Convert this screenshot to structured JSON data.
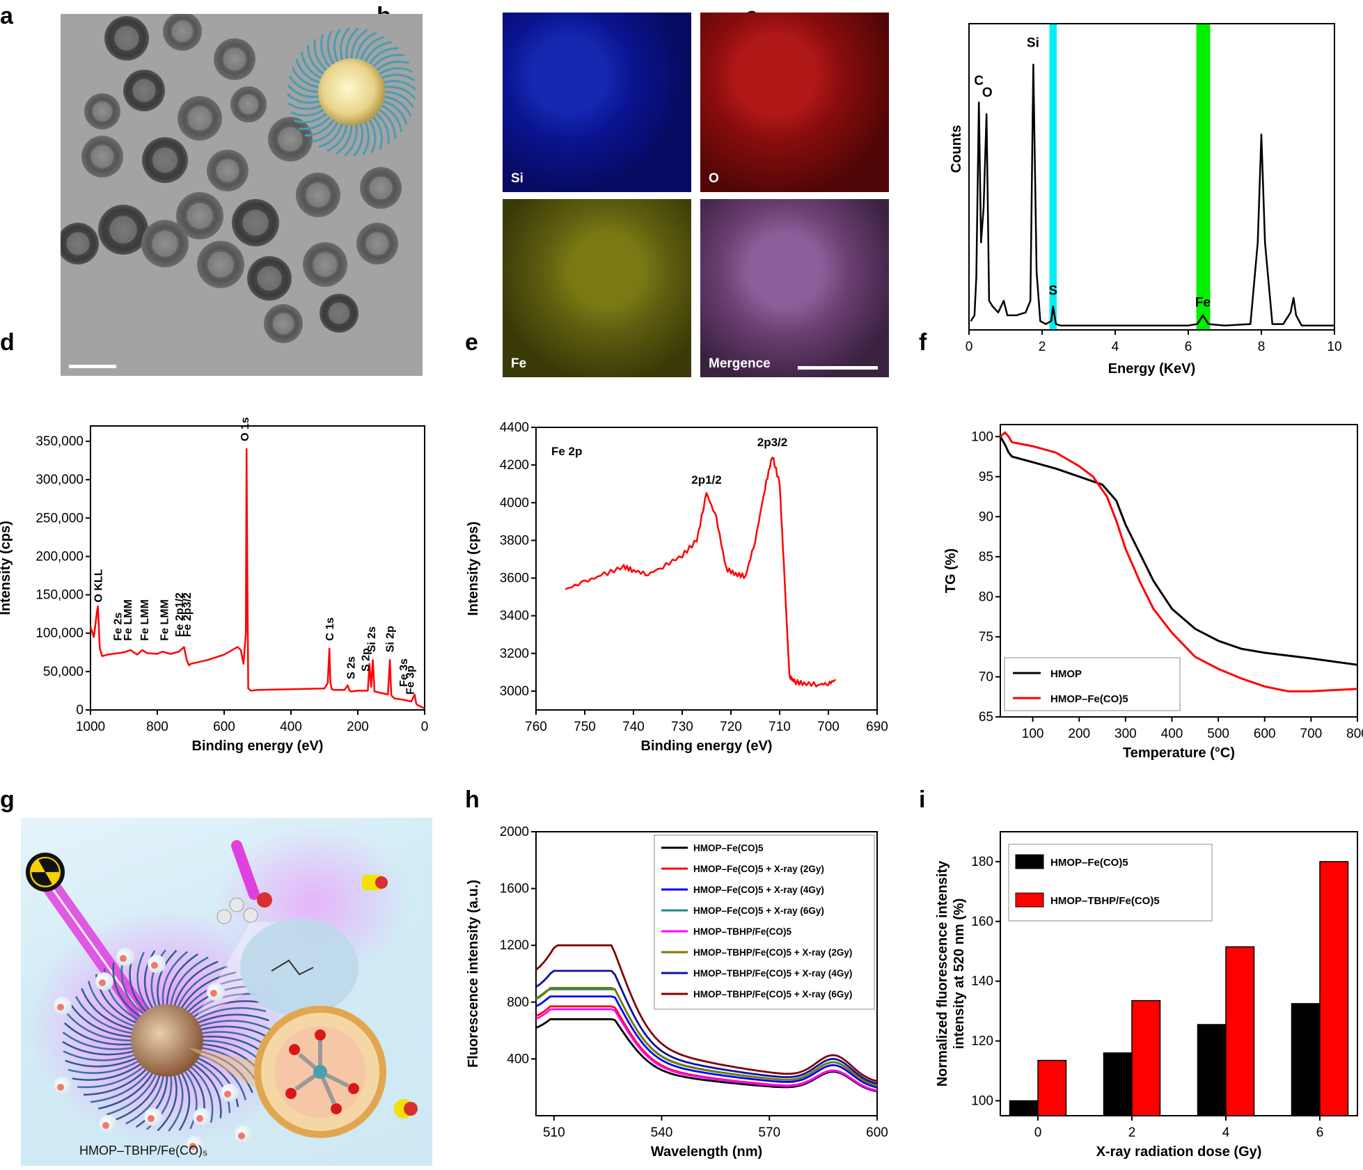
{
  "panels": {
    "a": "a",
    "b": "b",
    "c": "c",
    "d": "d",
    "e": "e",
    "f": "f",
    "g": "g",
    "h": "h",
    "i": "i"
  },
  "b_maps": {
    "si": "Si",
    "o": "O",
    "fe": "Fe",
    "merge": "Mergence",
    "colors": {
      "si": "#0a1aa0",
      "o": "#a01010",
      "fe": "#8a8a20",
      "merge": "#8a5a8a"
    }
  },
  "g_label": "HMOP–TBHP/Fe(CO)₅",
  "chart_data": [
    {
      "id": "c",
      "type": "line",
      "xlabel": "Energy (KeV)",
      "ylabel": "Counts",
      "xlim": [
        0,
        10
      ],
      "x_ticks": [
        "0",
        "2",
        "4",
        "6",
        "8",
        "10"
      ],
      "x": [
        0.05,
        0.15,
        0.2,
        0.27,
        0.33,
        0.4,
        0.48,
        0.55,
        0.65,
        0.8,
        0.95,
        1.05,
        1.3,
        1.55,
        1.68,
        1.76,
        1.85,
        1.95,
        2.1,
        2.25,
        2.3,
        2.38,
        2.5,
        3.0,
        4.0,
        5.0,
        6.0,
        6.25,
        6.4,
        6.55,
        7.0,
        7.7,
        7.9,
        8.0,
        8.1,
        8.3,
        8.6,
        8.8,
        8.88,
        8.95,
        9.1,
        10.0
      ],
      "y": [
        0.03,
        0.05,
        0.18,
        0.78,
        0.3,
        0.42,
        0.74,
        0.1,
        0.08,
        0.06,
        0.1,
        0.05,
        0.05,
        0.06,
        0.1,
        0.91,
        0.2,
        0.03,
        0.02,
        0.03,
        0.08,
        0.02,
        0.015,
        0.015,
        0.015,
        0.015,
        0.015,
        0.02,
        0.05,
        0.02,
        0.015,
        0.02,
        0.3,
        0.67,
        0.3,
        0.02,
        0.02,
        0.06,
        0.11,
        0.05,
        0.015,
        0.015
      ],
      "peaks": [
        {
          "label": "C",
          "x": 0.27
        },
        {
          "label": "O",
          "x": 0.5
        },
        {
          "label": "Si",
          "x": 1.75
        },
        {
          "label": "S",
          "x": 2.3
        },
        {
          "label": "Fe",
          "x": 6.4
        }
      ],
      "bands": [
        {
          "x0": 2.2,
          "x1": 2.4,
          "color": "#00f0f5"
        },
        {
          "x0": 6.22,
          "x1": 6.6,
          "color": "#00f000"
        }
      ]
    },
    {
      "id": "d",
      "type": "line",
      "xlabel": "Binding energy (eV)",
      "ylabel": "Intensity (cps)",
      "xlim": [
        1000,
        0
      ],
      "ylim": [
        0,
        370000
      ],
      "x_ticks": [
        "1000",
        "800",
        "600",
        "400",
        "200",
        "0"
      ],
      "y_ticks": [
        "0",
        "50,000",
        "100,000",
        "150,000",
        "200,000",
        "250,000",
        "300,000",
        "350,000"
      ],
      "x": [
        1000,
        990,
        980,
        978,
        972,
        965,
        950,
        900,
        880,
        860,
        845,
        830,
        800,
        785,
        760,
        735,
        720,
        712,
        705,
        700,
        650,
        600,
        560,
        550,
        542,
        535,
        533,
        531,
        528,
        520,
        500,
        400,
        300,
        290,
        285,
        282,
        278,
        270,
        240,
        230,
        225,
        220,
        200,
        170,
        165,
        160,
        155,
        150,
        110,
        104,
        100,
        98,
        90,
        60,
        40,
        30,
        25,
        20,
        10,
        0
      ],
      "y": [
        108000,
        95000,
        130000,
        135000,
        80000,
        70000,
        72000,
        75000,
        78000,
        72000,
        78000,
        74000,
        73000,
        76000,
        73000,
        76000,
        82000,
        65000,
        58000,
        60000,
        65000,
        72000,
        82000,
        78000,
        60000,
        100000,
        340000,
        200000,
        28000,
        25000,
        26000,
        27000,
        28000,
        35000,
        80000,
        35000,
        27000,
        26000,
        26000,
        32000,
        25000,
        24000,
        25000,
        25000,
        60000,
        30000,
        65000,
        24000,
        20000,
        65000,
        20000,
        18000,
        15000,
        13000,
        11000,
        20000,
        8000,
        6000,
        4000,
        2000
      ],
      "annotations": [
        "O KLL",
        "Fe 2s",
        "Fe LMM",
        "Fe LMM",
        "Fe LMM",
        "Fe 2p1/2",
        "Fe 2p3/2",
        "O 1s",
        "C 1s",
        "S 2s",
        "S 2p",
        "Si 2s",
        "Si 2p",
        "Fe 3s",
        "Fe 3p"
      ]
    },
    {
      "id": "e",
      "type": "line",
      "title": "Fe 2p",
      "xlabel": "Binding energy (eV)",
      "ylabel": "Intensity (cps)",
      "xlim": [
        760,
        690
      ],
      "ylim": [
        2900,
        4400
      ],
      "x_ticks": [
        "760",
        "750",
        "740",
        "730",
        "720",
        "710",
        "700",
        "690"
      ],
      "y_ticks": [
        "3000",
        "3200",
        "3400",
        "3600",
        "3800",
        "4000",
        "4200",
        "4400"
      ],
      "x": [
        754,
        750,
        746,
        742,
        740,
        737,
        734,
        730,
        727,
        725,
        723,
        721,
        719,
        717,
        715,
        713,
        711.5,
        710,
        709,
        708,
        707,
        705,
        702,
        700,
        698.5
      ],
      "y": [
        3540,
        3580,
        3620,
        3660,
        3640,
        3620,
        3660,
        3720,
        3800,
        4050,
        3920,
        3650,
        3620,
        3610,
        3800,
        4080,
        4250,
        4100,
        3600,
        3080,
        3050,
        3040,
        3035,
        3040,
        3060
      ],
      "annotations": [
        "2p1/2",
        "2p3/2"
      ]
    },
    {
      "id": "f",
      "type": "line",
      "xlabel": "Temperature (°C)",
      "ylabel": "TG (%)",
      "xlim": [
        30,
        800
      ],
      "ylim": [
        65,
        101.5
      ],
      "x_ticks": [
        "100",
        "200",
        "300",
        "400",
        "500",
        "600",
        "700",
        "800"
      ],
      "y_ticks": [
        "65",
        "70",
        "75",
        "80",
        "85",
        "90",
        "95",
        "100"
      ],
      "legend": [
        "HMOP",
        "HMOP–Fe(CO)5"
      ],
      "series": [
        {
          "name": "HMOP",
          "color": "#000000",
          "x": [
            30,
            40,
            48,
            55,
            100,
            150,
            200,
            250,
            280,
            300,
            330,
            360,
            400,
            450,
            500,
            550,
            600,
            700,
            800
          ],
          "y": [
            100,
            99,
            98,
            97.5,
            96.8,
            96,
            95,
            94,
            92,
            89,
            85.5,
            82,
            78.5,
            76,
            74.5,
            73.5,
            73,
            72.3,
            71.5
          ]
        },
        {
          "name": "HMOP–Fe(CO)5",
          "color": "#ff0000",
          "x": [
            30,
            40,
            48,
            55,
            100,
            150,
            200,
            230,
            260,
            280,
            300,
            330,
            360,
            400,
            450,
            500,
            550,
            600,
            650,
            700,
            800
          ],
          "y": [
            100,
            100.5,
            100,
            99.3,
            98.8,
            98,
            96.3,
            95,
            92.5,
            89.5,
            86,
            82,
            78.5,
            75.5,
            72.5,
            71,
            69.8,
            68.8,
            68.2,
            68.2,
            68.5
          ]
        }
      ]
    },
    {
      "id": "h",
      "type": "line",
      "xlabel": "Wavelength (nm)",
      "ylabel": "Fluorescence intensity (a.u.)",
      "xlim": [
        505,
        600
      ],
      "ylim": [
        0,
        2000
      ],
      "x_ticks": [
        "510",
        "540",
        "570",
        "600"
      ],
      "y_ticks": [
        "400",
        "800",
        "1200",
        "1600",
        "2000"
      ],
      "series": [
        {
          "name": "HMOP–Fe(CO)5",
          "color": "#000000",
          "y0": 620,
          "peak": 680,
          "tail": 150
        },
        {
          "name": "HMOP–Fe(CO)5 + X-ray (2Gy)",
          "color": "#ff0000",
          "y0": 700,
          "peak": 770,
          "tail": 150
        },
        {
          "name": "HMOP–Fe(CO)5 + X-ray (4Gy)",
          "color": "#0000ff",
          "y0": 770,
          "peak": 840,
          "tail": 170
        },
        {
          "name": "HMOP–Fe(CO)5 + X-ray (6Gy)",
          "color": "#1a8a8a",
          "y0": 830,
          "peak": 890,
          "tail": 180
        },
        {
          "name": "HMOP–TBHP/Fe(CO)5",
          "color": "#ff00ff",
          "y0": 680,
          "peak": 750,
          "tail": 150
        },
        {
          "name": "HMOP–TBHP/Fe(CO)5 + X-ray (2Gy)",
          "color": "#7a7a00",
          "y0": 820,
          "peak": 900,
          "tail": 180
        },
        {
          "name": "HMOP–TBHP/Fe(CO)5 + X-ray (4Gy)",
          "color": "#1010a0",
          "y0": 900,
          "peak": 1020,
          "tail": 190
        },
        {
          "name": "HMOP–TBHP/Fe(CO)5 + X-ray (6Gy)",
          "color": "#800000",
          "y0": 1010,
          "peak": 1200,
          "tail": 200
        }
      ]
    },
    {
      "id": "i",
      "type": "bar",
      "xlabel": "X-ray radiation dose (Gy)",
      "ylabel": "Normalized fluorescence intensity at 520 nm (%)",
      "categories": [
        "0",
        "2",
        "4",
        "6"
      ],
      "ylim": [
        95,
        190
      ],
      "y_ticks": [
        "100",
        "120",
        "140",
        "160",
        "180"
      ],
      "series": [
        {
          "name": "HMOP–Fe(CO)5",
          "color": "#000000",
          "values": [
            100,
            116,
            125.5,
            132.5
          ]
        },
        {
          "name": "HMOP–TBHP/Fe(CO)5",
          "color": "#ff0000",
          "values": [
            113.5,
            133.5,
            151.5,
            180
          ]
        }
      ]
    }
  ]
}
